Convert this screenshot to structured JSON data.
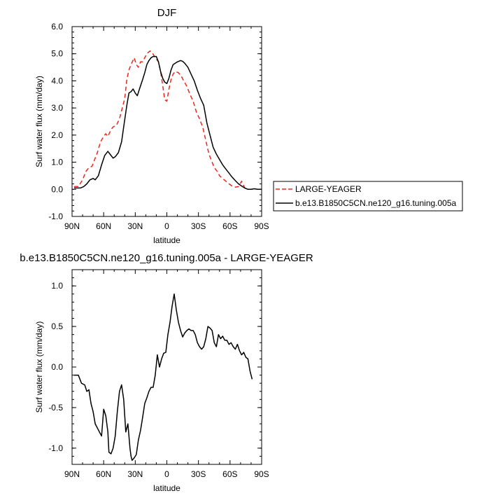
{
  "chart_data": [
    {
      "type": "line",
      "title": "DJF",
      "xlabel": "latitude",
      "ylabel": "Surf water flux (mm/day)",
      "xlim": [
        90,
        -90
      ],
      "ylim": [
        -1.0,
        6.0
      ],
      "x_ticks": [
        {
          "value": 90,
          "label": "90N"
        },
        {
          "value": 60,
          "label": "60N"
        },
        {
          "value": 30,
          "label": "30N"
        },
        {
          "value": 0,
          "label": "0"
        },
        {
          "value": -30,
          "label": "30S"
        },
        {
          "value": -60,
          "label": "60S"
        },
        {
          "value": -90,
          "label": "90S"
        }
      ],
      "y_ticks": [
        {
          "value": -1.0,
          "label": "-1.0"
        },
        {
          "value": 0.0,
          "label": "0.0"
        },
        {
          "value": 1.0,
          "label": "1.0"
        },
        {
          "value": 2.0,
          "label": "2.0"
        },
        {
          "value": 3.0,
          "label": "3.0"
        },
        {
          "value": 4.0,
          "label": "4.0"
        },
        {
          "value": 5.0,
          "label": "5.0"
        },
        {
          "value": 6.0,
          "label": "6.0"
        }
      ],
      "legend_position": "right",
      "series": [
        {
          "name": "LARGE-YEAGER",
          "color": "#e8281e",
          "dash": true,
          "x": [
            88,
            84,
            80,
            77,
            74,
            71,
            69,
            66,
            63,
            60,
            58,
            56,
            53,
            51,
            48,
            45,
            43,
            40,
            38,
            36,
            34,
            31,
            29,
            27,
            25,
            23,
            21,
            19,
            16,
            14,
            11,
            8,
            6,
            4,
            2,
            0,
            -2,
            -4,
            -6,
            -8,
            -11,
            -14,
            -16,
            -19,
            -22,
            -25,
            -28,
            -31,
            -34,
            -37,
            -40,
            -43,
            -45,
            -48,
            -50,
            -53,
            -56,
            -59,
            -62,
            -65,
            -68,
            -71,
            -74,
            -77,
            -80,
            -83
          ],
          "y": [
            0.1,
            0.1,
            0.35,
            0.65,
            0.8,
            0.85,
            1.05,
            1.35,
            1.75,
            1.95,
            2.05,
            1.95,
            2.2,
            2.3,
            2.35,
            2.6,
            2.9,
            3.35,
            4.05,
            4.4,
            4.6,
            4.85,
            4.6,
            4.5,
            4.7,
            4.7,
            4.85,
            5.0,
            5.1,
            5.05,
            4.85,
            4.7,
            4.35,
            3.85,
            3.3,
            3.25,
            3.7,
            4.05,
            4.25,
            4.35,
            4.3,
            4.15,
            4.0,
            3.8,
            3.5,
            3.25,
            2.85,
            2.6,
            2.3,
            1.8,
            1.3,
            1.0,
            0.8,
            0.65,
            0.5,
            0.4,
            0.3,
            0.2,
            0.12,
            0.08,
            0.1,
            0.3,
            0.05,
            0.0,
            0.0,
            0.0
          ]
        },
        {
          "name": "b.e13.B1850C5CN.ne120_g16.tuning.005a",
          "color": "#000000",
          "dash": false,
          "x": [
            88,
            85,
            82,
            79,
            76,
            73,
            70,
            68,
            65,
            62,
            59,
            56,
            54,
            51,
            49,
            46,
            43,
            41,
            38,
            36,
            34,
            32,
            30,
            28,
            26,
            23,
            21,
            19,
            17,
            15,
            13,
            10,
            8,
            6,
            4,
            2,
            0,
            -2,
            -4,
            -6,
            -8,
            -10,
            -13,
            -15,
            -17,
            -20,
            -23,
            -26,
            -29,
            -32,
            -35,
            -38,
            -41,
            -44,
            -47,
            -50,
            -53,
            -56,
            -59,
            -62,
            -65,
            -68,
            -71,
            -74,
            -77,
            -80,
            -83,
            -86,
            -90
          ],
          "y": [
            0.05,
            0.05,
            0.05,
            0.1,
            0.2,
            0.35,
            0.4,
            0.35,
            0.5,
            0.9,
            1.25,
            1.4,
            1.3,
            1.15,
            1.2,
            1.35,
            1.75,
            2.3,
            3.1,
            3.55,
            3.6,
            3.7,
            3.55,
            3.45,
            3.7,
            4.05,
            4.3,
            4.6,
            4.75,
            4.85,
            4.9,
            4.9,
            4.7,
            4.35,
            4.1,
            3.95,
            3.9,
            4.1,
            4.4,
            4.6,
            4.65,
            4.7,
            4.75,
            4.72,
            4.65,
            4.5,
            4.25,
            4.0,
            3.65,
            3.35,
            3.1,
            2.45,
            2.0,
            1.55,
            1.3,
            1.1,
            0.9,
            0.75,
            0.6,
            0.45,
            0.32,
            0.2,
            0.12,
            0.05,
            0.0,
            0.0,
            0.02,
            0.0,
            0.0
          ]
        }
      ]
    },
    {
      "type": "line",
      "title": "b.e13.B1850C5CN.ne120_g16.tuning.005a - LARGE-YEAGER",
      "xlabel": "latitude",
      "ylabel": "Surf water flux (mm/day)",
      "xlim": [
        90,
        -90
      ],
      "ylim": [
        -1.2,
        1.2
      ],
      "x_ticks": [
        {
          "value": 90,
          "label": "90N"
        },
        {
          "value": 60,
          "label": "60N"
        },
        {
          "value": 30,
          "label": "30N"
        },
        {
          "value": 0,
          "label": "0"
        },
        {
          "value": -30,
          "label": "30S"
        },
        {
          "value": -60,
          "label": "60S"
        },
        {
          "value": -90,
          "label": "90S"
        }
      ],
      "y_ticks": [
        {
          "value": -1.0,
          "label": "-1.0"
        },
        {
          "value": -0.5,
          "label": "-0.5"
        },
        {
          "value": 0.0,
          "label": "0.0"
        },
        {
          "value": 0.5,
          "label": "0.5"
        },
        {
          "value": 1.0,
          "label": "1.0"
        }
      ],
      "series": [
        {
          "name": "",
          "color": "#000000",
          "dash": false,
          "x": [
            88,
            84,
            81,
            78,
            76,
            74,
            72,
            70,
            68,
            66,
            64,
            62,
            60,
            58,
            56,
            55,
            53,
            51,
            49,
            47,
            45,
            43,
            41,
            39,
            37,
            35,
            34,
            33,
            31,
            29,
            27,
            25,
            23,
            21,
            19,
            17,
            15,
            13,
            11,
            9,
            7,
            5,
            3,
            1,
            -1,
            -3,
            -5,
            -7,
            -9,
            -11,
            -13,
            -15,
            -17,
            -19,
            -21,
            -23,
            -25,
            -27,
            -29,
            -31,
            -33,
            -35,
            -37,
            -39,
            -41,
            -43,
            -45,
            -47,
            -49,
            -51,
            -53,
            -55,
            -57,
            -59,
            -61,
            -63,
            -65,
            -67,
            -69,
            -71,
            -73,
            -75,
            -77,
            -79,
            -81
          ],
          "y": [
            -0.1,
            -0.1,
            -0.2,
            -0.22,
            -0.3,
            -0.28,
            -0.45,
            -0.55,
            -0.7,
            -0.75,
            -0.8,
            -0.85,
            -0.52,
            -0.6,
            -0.8,
            -1.05,
            -1.07,
            -1.0,
            -0.85,
            -0.55,
            -0.3,
            -0.22,
            -0.4,
            -0.8,
            -0.7,
            -1.0,
            -1.1,
            -1.15,
            -1.12,
            -1.08,
            -0.9,
            -0.78,
            -0.62,
            -0.45,
            -0.38,
            -0.3,
            -0.25,
            -0.25,
            -0.1,
            0.15,
            0.0,
            0.1,
            0.17,
            0.18,
            0.4,
            0.55,
            0.75,
            0.9,
            0.7,
            0.55,
            0.45,
            0.37,
            0.42,
            0.45,
            0.47,
            0.45,
            0.45,
            0.4,
            0.3,
            0.25,
            0.22,
            0.25,
            0.35,
            0.5,
            0.48,
            0.45,
            0.3,
            0.25,
            0.4,
            0.35,
            0.38,
            0.33,
            0.33,
            0.28,
            0.3,
            0.25,
            0.22,
            0.28,
            0.2,
            0.15,
            0.18,
            0.12,
            0.1,
            -0.05,
            -0.15
          ]
        }
      ]
    }
  ]
}
